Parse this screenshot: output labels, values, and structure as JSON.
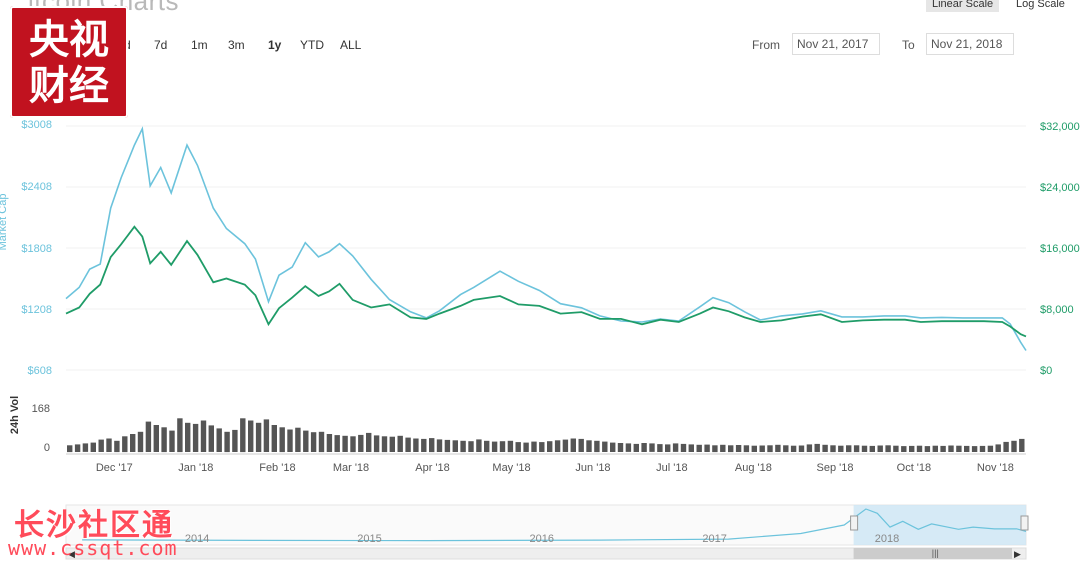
{
  "header": {
    "title": "itcoin Charts",
    "scale_linear": "Linear Scale",
    "scale_log": "Log Scale"
  },
  "zoom": {
    "buttons": [
      "d",
      "7d",
      "1m",
      "3m",
      "1y",
      "YTD",
      "ALL"
    ],
    "active": "1y"
  },
  "range": {
    "from_label": "From",
    "from_value": "Nov 21, 2017",
    "to_label": "To",
    "to_value": "Nov 21, 2018"
  },
  "watermark": {
    "logo_line1": "央视",
    "logo_line2": "财经",
    "site_text": "长沙社区通",
    "site_url": "www.cssqt.com"
  },
  "colors": {
    "market_cap": "#6cc3dc",
    "price": "#1f9c68",
    "volume": "#555555",
    "navigator_fill": "#cfe6f4",
    "logo_red": "#c1121f"
  },
  "chart_data": {
    "type": "line",
    "left_axis": {
      "label": "Market Cap",
      "ticks": [
        "$608",
        "$1208",
        "$1808",
        "$2408",
        "$3008"
      ],
      "tick_values": [
        608,
        1208,
        1808,
        2408,
        3008
      ],
      "range": [
        608,
        3008
      ]
    },
    "right_axis": {
      "ticks": [
        "$0",
        "$8,000",
        "$16,000",
        "$24,000",
        "$32,000"
      ],
      "tick_values": [
        0,
        8000,
        16000,
        24000,
        32000
      ],
      "range": [
        0,
        32000
      ]
    },
    "volume_axis": {
      "label": "24h Vol",
      "ticks": [
        "0",
        "168"
      ],
      "tick_values": [
        0,
        168
      ],
      "range": [
        0,
        240
      ]
    },
    "x_labels": [
      "Dec '17",
      "Jan '18",
      "Feb '18",
      "Mar '18",
      "Apr '18",
      "May '18",
      "Jun '18",
      "Jul '18",
      "Aug '18",
      "Sep '18",
      "Oct '18",
      "Nov '18"
    ],
    "x_start": "2017-11-21",
    "x_end": "2018-11-21",
    "series": [
      {
        "axis": "left",
        "color": "#6cc3dc",
        "points": [
          [
            "2017-11-21",
            1310
          ],
          [
            "2017-11-26",
            1420
          ],
          [
            "2017-11-30",
            1600
          ],
          [
            "2017-12-04",
            1650
          ],
          [
            "2017-12-08",
            2200
          ],
          [
            "2017-12-12",
            2500
          ],
          [
            "2017-12-17",
            2820
          ],
          [
            "2017-12-20",
            2980
          ],
          [
            "2017-12-23",
            2420
          ],
          [
            "2017-12-27",
            2600
          ],
          [
            "2017-12-31",
            2350
          ],
          [
            "2018-01-06",
            2820
          ],
          [
            "2018-01-10",
            2620
          ],
          [
            "2018-01-16",
            2200
          ],
          [
            "2018-01-21",
            2000
          ],
          [
            "2018-01-28",
            1850
          ],
          [
            "2018-02-01",
            1700
          ],
          [
            "2018-02-06",
            1280
          ],
          [
            "2018-02-10",
            1540
          ],
          [
            "2018-02-15",
            1620
          ],
          [
            "2018-02-20",
            1860
          ],
          [
            "2018-02-25",
            1720
          ],
          [
            "2018-03-01",
            1770
          ],
          [
            "2018-03-05",
            1850
          ],
          [
            "2018-03-10",
            1730
          ],
          [
            "2018-03-17",
            1500
          ],
          [
            "2018-03-24",
            1300
          ],
          [
            "2018-04-01",
            1180
          ],
          [
            "2018-04-07",
            1120
          ],
          [
            "2018-04-12",
            1190
          ],
          [
            "2018-04-20",
            1350
          ],
          [
            "2018-04-25",
            1420
          ],
          [
            "2018-05-05",
            1580
          ],
          [
            "2018-05-12",
            1480
          ],
          [
            "2018-05-20",
            1390
          ],
          [
            "2018-05-28",
            1260
          ],
          [
            "2018-06-05",
            1220
          ],
          [
            "2018-06-12",
            1140
          ],
          [
            "2018-06-20",
            1090
          ],
          [
            "2018-06-28",
            1080
          ],
          [
            "2018-07-05",
            1110
          ],
          [
            "2018-07-12",
            1090
          ],
          [
            "2018-07-20",
            1230
          ],
          [
            "2018-07-25",
            1320
          ],
          [
            "2018-07-31",
            1270
          ],
          [
            "2018-08-06",
            1180
          ],
          [
            "2018-08-12",
            1100
          ],
          [
            "2018-08-20",
            1140
          ],
          [
            "2018-08-28",
            1160
          ],
          [
            "2018-09-04",
            1190
          ],
          [
            "2018-09-12",
            1130
          ],
          [
            "2018-09-20",
            1130
          ],
          [
            "2018-09-28",
            1140
          ],
          [
            "2018-10-06",
            1140
          ],
          [
            "2018-10-12",
            1120
          ],
          [
            "2018-10-20",
            1125
          ],
          [
            "2018-10-28",
            1120
          ],
          [
            "2018-11-05",
            1120
          ],
          [
            "2018-11-12",
            1120
          ],
          [
            "2018-11-15",
            1060
          ],
          [
            "2018-11-19",
            880
          ],
          [
            "2018-11-21",
            800
          ]
        ]
      },
      {
        "axis": "right",
        "color": "#1f9c68",
        "points": [
          [
            "2017-11-21",
            7400
          ],
          [
            "2017-11-26",
            8200
          ],
          [
            "2017-11-30",
            10000
          ],
          [
            "2017-12-04",
            11200
          ],
          [
            "2017-12-08",
            14800
          ],
          [
            "2017-12-12",
            16500
          ],
          [
            "2017-12-17",
            18800
          ],
          [
            "2017-12-20",
            17500
          ],
          [
            "2017-12-23",
            14000
          ],
          [
            "2017-12-27",
            15500
          ],
          [
            "2017-12-31",
            13800
          ],
          [
            "2018-01-06",
            16900
          ],
          [
            "2018-01-10",
            15100
          ],
          [
            "2018-01-16",
            11500
          ],
          [
            "2018-01-21",
            12000
          ],
          [
            "2018-01-28",
            11200
          ],
          [
            "2018-02-01",
            9800
          ],
          [
            "2018-02-06",
            6000
          ],
          [
            "2018-02-10",
            8100
          ],
          [
            "2018-02-15",
            9500
          ],
          [
            "2018-02-20",
            11000
          ],
          [
            "2018-02-25",
            9700
          ],
          [
            "2018-03-01",
            10300
          ],
          [
            "2018-03-05",
            11300
          ],
          [
            "2018-03-10",
            9200
          ],
          [
            "2018-03-17",
            8200
          ],
          [
            "2018-03-24",
            8600
          ],
          [
            "2018-04-01",
            6900
          ],
          [
            "2018-04-07",
            6700
          ],
          [
            "2018-04-12",
            7400
          ],
          [
            "2018-04-20",
            8400
          ],
          [
            "2018-04-25",
            9200
          ],
          [
            "2018-05-05",
            9700
          ],
          [
            "2018-05-12",
            8600
          ],
          [
            "2018-05-20",
            8400
          ],
          [
            "2018-05-28",
            7400
          ],
          [
            "2018-06-05",
            7600
          ],
          [
            "2018-06-12",
            6700
          ],
          [
            "2018-06-20",
            6700
          ],
          [
            "2018-06-28",
            6000
          ],
          [
            "2018-07-05",
            6600
          ],
          [
            "2018-07-12",
            6300
          ],
          [
            "2018-07-20",
            7400
          ],
          [
            "2018-07-25",
            8200
          ],
          [
            "2018-07-31",
            7700
          ],
          [
            "2018-08-06",
            6900
          ],
          [
            "2018-08-12",
            6300
          ],
          [
            "2018-08-20",
            6500
          ],
          [
            "2018-08-28",
            7000
          ],
          [
            "2018-09-04",
            7300
          ],
          [
            "2018-09-12",
            6300
          ],
          [
            "2018-09-20",
            6500
          ],
          [
            "2018-09-28",
            6600
          ],
          [
            "2018-10-06",
            6600
          ],
          [
            "2018-10-12",
            6300
          ],
          [
            "2018-10-20",
            6400
          ],
          [
            "2018-10-28",
            6400
          ],
          [
            "2018-11-05",
            6400
          ],
          [
            "2018-11-12",
            6300
          ],
          [
            "2018-11-15",
            5700
          ],
          [
            "2018-11-19",
            4700
          ],
          [
            "2018-11-21",
            4400
          ]
        ]
      }
    ],
    "volume": [
      30,
      34,
      38,
      42,
      55,
      60,
      50,
      70,
      80,
      90,
      135,
      120,
      110,
      95,
      150,
      130,
      125,
      140,
      118,
      105,
      90,
      98,
      150,
      140,
      130,
      145,
      120,
      110,
      100,
      108,
      95,
      88,
      90,
      80,
      75,
      72,
      70,
      76,
      85,
      74,
      70,
      68,
      72,
      64,
      60,
      58,
      62,
      56,
      54,
      52,
      50,
      48,
      56,
      50,
      46,
      48,
      50,
      44,
      42,
      46,
      44,
      48,
      52,
      55,
      60,
      58,
      52,
      50,
      46,
      42,
      40,
      38,
      36,
      40,
      38,
      35,
      34,
      38,
      36,
      34,
      32,
      33,
      30,
      32,
      30,
      31,
      30,
      28,
      29,
      30,
      32,
      30,
      28,
      29,
      34,
      36,
      32,
      30,
      28,
      30,
      30,
      28,
      27,
      29,
      30,
      28,
      26,
      27,
      28,
      26,
      28,
      27,
      29,
      28,
      27,
      26,
      27,
      28,
      34,
      45,
      50,
      58
    ],
    "navigator": {
      "years": [
        "2014",
        "2015",
        "2016",
        "2017",
        "2018"
      ],
      "series": [
        [
          "2013-06-01",
          100
        ],
        [
          "2014-06-01",
          60
        ],
        [
          "2015-06-01",
          40
        ],
        [
          "2016-06-01",
          80
        ],
        [
          "2017-03-01",
          180
        ],
        [
          "2017-08-01",
          700
        ],
        [
          "2017-11-01",
          1500
        ],
        [
          "2017-12-17",
          3000
        ],
        [
          "2018-01-10",
          2600
        ],
        [
          "2018-02-06",
          1300
        ],
        [
          "2018-03-05",
          1850
        ],
        [
          "2018-04-07",
          1100
        ],
        [
          "2018-05-05",
          1600
        ],
        [
          "2018-07-01",
          1100
        ],
        [
          "2018-08-01",
          1300
        ],
        [
          "2018-09-15",
          1130
        ],
        [
          "2018-11-01",
          1140
        ],
        [
          "2018-11-21",
          900
        ]
      ]
    }
  }
}
